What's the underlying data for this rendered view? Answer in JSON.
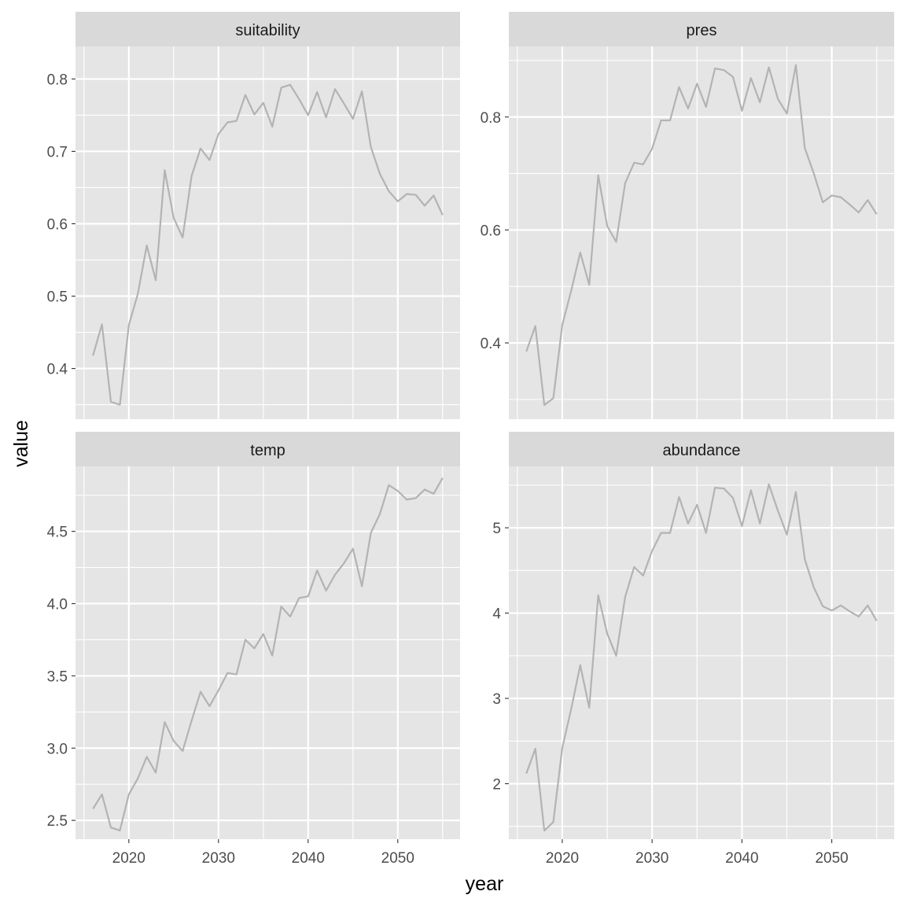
{
  "chart_data": {
    "type": "line",
    "layout": "facet-grid-2x2",
    "xlabel": "year",
    "ylabel": "value",
    "xlim": [
      2014.05,
      2056.95
    ],
    "x_ticks": [
      2020,
      2030,
      2040,
      2050
    ],
    "x_tick_labels": [
      "2020",
      "2030",
      "2040",
      "2050"
    ],
    "x": [
      2016,
      2017,
      2018,
      2019,
      2020,
      2021,
      2022,
      2023,
      2024,
      2025,
      2026,
      2027,
      2028,
      2029,
      2030,
      2031,
      2032,
      2033,
      2034,
      2035,
      2036,
      2037,
      2038,
      2039,
      2040,
      2041,
      2042,
      2043,
      2044,
      2045,
      2046,
      2047,
      2048,
      2049,
      2050,
      2051,
      2052,
      2053,
      2054,
      2055
    ],
    "colors": {
      "line": "#b3b3b3",
      "panel_background": "#e5e5e5",
      "strip_background": "#d9d9d9",
      "grid": "#ffffff"
    },
    "grid": true,
    "panels": [
      {
        "name": "suitability",
        "ylim": [
          0.33,
          0.845
        ],
        "y_ticks": [
          0.4,
          0.5,
          0.6,
          0.7,
          0.8
        ],
        "y_tick_labels": [
          "0.4",
          "0.5",
          "0.6",
          "0.7",
          "0.8"
        ],
        "values": [
          0.418,
          0.461,
          0.354,
          0.35,
          0.46,
          0.503,
          0.57,
          0.522,
          0.674,
          0.608,
          0.581,
          0.666,
          0.704,
          0.688,
          0.724,
          0.74,
          0.742,
          0.778,
          0.751,
          0.767,
          0.734,
          0.788,
          0.792,
          0.772,
          0.75,
          0.782,
          0.747,
          0.786,
          0.766,
          0.745,
          0.783,
          0.706,
          0.669,
          0.645,
          0.631,
          0.641,
          0.64,
          0.625,
          0.639,
          0.612
        ]
      },
      {
        "name": "pres",
        "ylim": [
          0.265,
          0.925
        ],
        "y_ticks": [
          0.4,
          0.6,
          0.8
        ],
        "y_tick_labels": [
          "0.4",
          "0.6",
          "0.8"
        ],
        "values": [
          0.385,
          0.43,
          0.29,
          0.302,
          0.432,
          0.493,
          0.56,
          0.503,
          0.697,
          0.607,
          0.579,
          0.683,
          0.719,
          0.716,
          0.744,
          0.794,
          0.794,
          0.853,
          0.815,
          0.859,
          0.818,
          0.886,
          0.883,
          0.871,
          0.811,
          0.869,
          0.826,
          0.888,
          0.832,
          0.806,
          0.892,
          0.745,
          0.7,
          0.649,
          0.661,
          0.658,
          0.645,
          0.631,
          0.653,
          0.628
        ]
      },
      {
        "name": "temp",
        "ylim": [
          2.37,
          4.95
        ],
        "y_ticks": [
          2.5,
          3.0,
          3.5,
          4.0,
          4.5
        ],
        "y_tick_labels": [
          "2.5",
          "3.0",
          "3.5",
          "4.0",
          "4.5"
        ],
        "values": [
          2.58,
          2.68,
          2.45,
          2.43,
          2.68,
          2.79,
          2.94,
          2.83,
          3.18,
          3.05,
          2.98,
          3.19,
          3.39,
          3.29,
          3.4,
          3.52,
          3.51,
          3.75,
          3.69,
          3.79,
          3.64,
          3.98,
          3.91,
          4.04,
          4.05,
          4.23,
          4.09,
          4.2,
          4.28,
          4.38,
          4.12,
          4.49,
          4.62,
          4.82,
          4.78,
          4.72,
          4.73,
          4.79,
          4.76,
          4.87
        ]
      },
      {
        "name": "abundance",
        "ylim": [
          1.35,
          5.72
        ],
        "y_ticks": [
          2,
          3,
          4,
          5
        ],
        "y_tick_labels": [
          "2",
          "3",
          "4",
          "5"
        ],
        "values": [
          2.12,
          2.41,
          1.45,
          1.55,
          2.42,
          2.88,
          3.39,
          2.89,
          4.21,
          3.76,
          3.5,
          4.19,
          4.54,
          4.44,
          4.73,
          4.94,
          4.94,
          5.36,
          5.05,
          5.27,
          4.94,
          5.47,
          5.46,
          5.35,
          5.02,
          5.44,
          5.05,
          5.51,
          5.2,
          4.92,
          5.42,
          4.63,
          4.3,
          4.08,
          4.03,
          4.09,
          4.02,
          3.96,
          4.09,
          3.91
        ]
      }
    ]
  }
}
